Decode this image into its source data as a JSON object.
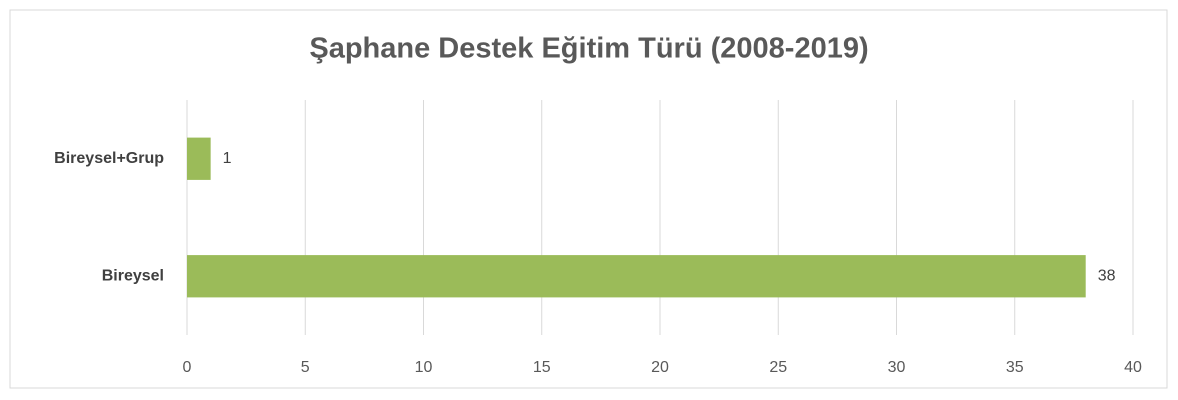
{
  "chart_data": {
    "type": "bar",
    "orientation": "horizontal",
    "title": "Şaphane Destek Eğitim Türü (2008-2019)",
    "categories": [
      "Bireysel+Grup",
      "Bireysel"
    ],
    "values": [
      1,
      38
    ],
    "color": "#9bbb59",
    "xlim": [
      0,
      40
    ],
    "xticks": [
      0,
      5,
      10,
      15,
      20,
      25,
      30,
      35,
      40
    ],
    "grid": true
  }
}
